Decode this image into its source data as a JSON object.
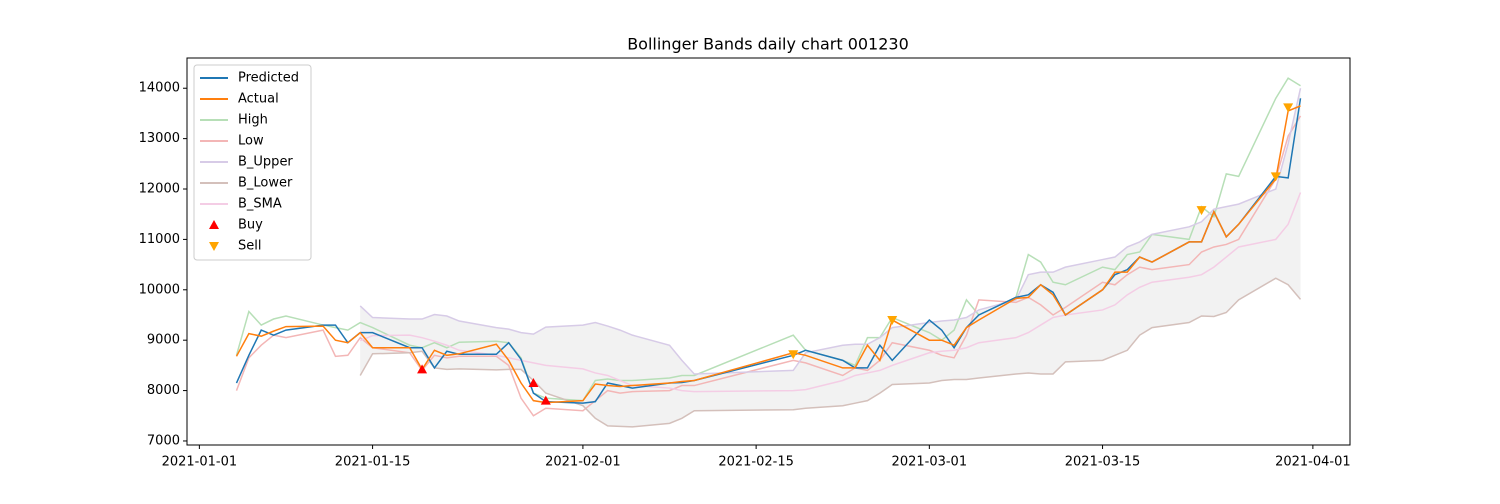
{
  "chart_data": {
    "type": "line",
    "title": "Bollinger Bands daily chart 001230",
    "x": [
      "2021-01-04",
      "2021-01-05",
      "2021-01-06",
      "2021-01-07",
      "2021-01-08",
      "2021-01-11",
      "2021-01-12",
      "2021-01-13",
      "2021-01-14",
      "2021-01-15",
      "2021-01-18",
      "2021-01-19",
      "2021-01-20",
      "2021-01-21",
      "2021-01-22",
      "2021-01-25",
      "2021-01-26",
      "2021-01-27",
      "2021-01-28",
      "2021-01-29",
      "2021-02-01",
      "2021-02-02",
      "2021-02-03",
      "2021-02-04",
      "2021-02-05",
      "2021-02-08",
      "2021-02-09",
      "2021-02-10",
      "2021-02-18",
      "2021-02-19",
      "2021-02-22",
      "2021-02-23",
      "2021-02-24",
      "2021-02-25",
      "2021-02-26",
      "2021-03-01",
      "2021-03-02",
      "2021-03-03",
      "2021-03-04",
      "2021-03-05",
      "2021-03-08",
      "2021-03-09",
      "2021-03-10",
      "2021-03-11",
      "2021-03-12",
      "2021-03-15",
      "2021-03-16",
      "2021-03-17",
      "2021-03-18",
      "2021-03-19",
      "2021-03-22",
      "2021-03-23",
      "2021-03-24",
      "2021-03-25",
      "2021-03-26",
      "2021-03-29",
      "2021-03-30",
      "2021-03-31"
    ],
    "xlim": [
      "2020-12-31",
      "2021-04-04"
    ],
    "xticks": [
      "2021-01-01",
      "2021-01-15",
      "2021-02-01",
      "2021-02-15",
      "2021-03-01",
      "2021-03-15",
      "2021-04-01"
    ],
    "ylim": [
      6920,
      14600
    ],
    "yticks": [
      7000,
      8000,
      9000,
      10000,
      11000,
      12000,
      13000,
      14000
    ],
    "legend": "upper left",
    "band_fill": {
      "upper": "B_Upper",
      "lower": "B_Lower",
      "color": "#f2f2f2"
    },
    "series": [
      {
        "name": "High",
        "color": "#b7dfb7",
        "values": [
          8700,
          9570,
          9300,
          9420,
          9480,
          9300,
          9250,
          9200,
          9350,
          9250,
          8900,
          8850,
          8950,
          8850,
          8960,
          8980,
          8950,
          8650,
          7950,
          7850,
          7800,
          8200,
          8230,
          8200,
          8200,
          8250,
          8300,
          8300,
          9100,
          8800,
          8600,
          8500,
          9050,
          9050,
          9450,
          9150,
          9000,
          9200,
          9800,
          9500,
          9850,
          10700,
          10550,
          10150,
          10100,
          10450,
          10400,
          10700,
          10750,
          11100,
          11000,
          11650,
          11450,
          12300,
          12250,
          13800,
          14200,
          14050
        ]
      },
      {
        "name": "Low",
        "color": "#f3b6b6",
        "values": [
          8000,
          8650,
          8900,
          9100,
          9050,
          9200,
          8680,
          8700,
          9050,
          8850,
          8750,
          8400,
          8700,
          8650,
          8680,
          8680,
          8500,
          7850,
          7500,
          7650,
          7600,
          7800,
          8000,
          7950,
          7980,
          8000,
          8100,
          8100,
          8600,
          8550,
          8300,
          8450,
          8400,
          8600,
          8950,
          8800,
          8700,
          8650,
          9100,
          9800,
          9750,
          9850,
          9700,
          9500,
          9650,
          10150,
          10100,
          10300,
          10450,
          10400,
          10500,
          10750,
          10850,
          10900,
          11000,
          12200,
          13050,
          13450
        ]
      },
      {
        "name": "B_Upper",
        "color": "#d7cbe7",
        "values": [
          null,
          null,
          null,
          null,
          null,
          null,
          null,
          null,
          9680,
          9450,
          9420,
          9420,
          9510,
          9480,
          9380,
          9250,
          9220,
          9150,
          9120,
          9260,
          9300,
          9350,
          9280,
          9200,
          9100,
          8900,
          8600,
          8330,
          8400,
          8750,
          8900,
          8920,
          8920,
          9050,
          9250,
          9350,
          9380,
          9400,
          9450,
          9600,
          9800,
          10300,
          10350,
          10350,
          10450,
          10600,
          10650,
          10850,
          10950,
          11100,
          11250,
          11350,
          11600,
          11650,
          11700,
          12000,
          12900,
          14000
        ]
      },
      {
        "name": "B_Lower",
        "color": "#d4c0bb",
        "values": [
          null,
          null,
          null,
          null,
          null,
          null,
          null,
          null,
          8300,
          8730,
          8750,
          8780,
          8450,
          8420,
          8430,
          8410,
          8420,
          8420,
          8200,
          7950,
          7700,
          7450,
          7300,
          7290,
          7280,
          7350,
          7450,
          7600,
          7620,
          7650,
          7700,
          7750,
          7800,
          7950,
          8120,
          8150,
          8200,
          8220,
          8220,
          8250,
          8330,
          8350,
          8330,
          8330,
          8570,
          8600,
          8700,
          8800,
          9100,
          9250,
          9350,
          9480,
          9470,
          9550,
          9800,
          10230,
          10100,
          9810
        ]
      },
      {
        "name": "B_SMA",
        "color": "#f4cde5",
        "values": [
          null,
          null,
          null,
          null,
          null,
          null,
          null,
          null,
          8990,
          9090,
          9100,
          9050,
          8980,
          8900,
          8800,
          8700,
          8650,
          8600,
          8550,
          8500,
          8430,
          8350,
          8300,
          8200,
          8100,
          8050,
          8000,
          7980,
          8000,
          8020,
          8200,
          8300,
          8350,
          8400,
          8500,
          8750,
          8780,
          8800,
          8850,
          8950,
          9050,
          9150,
          9300,
          9450,
          9500,
          9600,
          9700,
          9900,
          10050,
          10150,
          10250,
          10300,
          10450,
          10650,
          10850,
          11000,
          11300,
          11930
        ]
      },
      {
        "name": "Predicted",
        "color": "#1f77b4",
        "values": [
          8150,
          8700,
          9200,
          9100,
          9200,
          9300,
          9300,
          8950,
          9150,
          9150,
          8850,
          8850,
          8450,
          8780,
          8720,
          8720,
          8950,
          8620,
          7950,
          7780,
          7750,
          7780,
          8150,
          8100,
          8050,
          8150,
          8160,
          8200,
          8700,
          8800,
          8600,
          8450,
          8450,
          8900,
          8600,
          9400,
          9200,
          8850,
          9250,
          9500,
          9850,
          9900,
          10100,
          9950,
          9500,
          10000,
          10300,
          10400,
          10650,
          10550,
          10950,
          10950,
          11550,
          11050,
          11300,
          12250,
          12220,
          13800
        ]
      },
      {
        "name": "Actual",
        "color": "#ff7f0e",
        "values": [
          8680,
          9130,
          9080,
          9180,
          9270,
          9280,
          9000,
          8950,
          9150,
          8850,
          8850,
          8420,
          8800,
          8700,
          8730,
          8920,
          8600,
          8150,
          7800,
          7760,
          7800,
          8130,
          8100,
          8080,
          8100,
          8150,
          8180,
          8200,
          8750,
          8700,
          8450,
          8450,
          8900,
          8600,
          9400,
          9000,
          9000,
          8900,
          9250,
          9400,
          9830,
          9850,
          10100,
          9900,
          9500,
          10000,
          10350,
          10350,
          10650,
          10550,
          10950,
          10950,
          11550,
          11050,
          11300,
          12200,
          13550,
          13650
        ]
      },
      {
        "name": "Buy",
        "type": "scatter",
        "marker": "up",
        "color": "#ff0000",
        "x": [
          "2021-01-19",
          "2021-01-28",
          "2021-01-29"
        ],
        "values": [
          8420,
          8150,
          7800
        ]
      },
      {
        "name": "Sell",
        "type": "scatter",
        "marker": "down",
        "color": "#ffa500",
        "x": [
          "2021-02-18",
          "2021-02-26",
          "2021-03-23",
          "2021-03-29",
          "2021-03-30"
        ],
        "values": [
          8720,
          9400,
          11580,
          12250,
          13620
        ]
      }
    ],
    "legend_order": [
      "Predicted",
      "Actual",
      "High",
      "Low",
      "B_Upper",
      "B_Lower",
      "B_SMA",
      "Buy",
      "Sell"
    ]
  }
}
